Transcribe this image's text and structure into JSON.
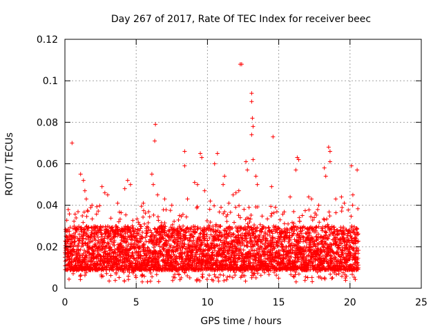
{
  "chart_data": {
    "type": "scatter",
    "title": "Day 267 of 2017, Rate Of TEC Index for receiver beec",
    "xlabel": "GPS time / hours",
    "ylabel": "ROTI / TECUs",
    "xlim": [
      0,
      25
    ],
    "ylim": [
      0,
      0.12
    ],
    "x_ticks": [
      0,
      5,
      10,
      15,
      20,
      25
    ],
    "x_tick_labels": [
      "0",
      "5",
      "10",
      "15",
      "20",
      "25"
    ],
    "y_ticks": [
      0,
      0.02,
      0.04,
      0.06,
      0.08,
      0.1,
      0.12
    ],
    "y_tick_labels": [
      "0",
      "0.02",
      "0.04",
      "0.06",
      "0.08",
      "0.1",
      "0.12"
    ],
    "grid": true,
    "marker": "+",
    "color": "#ff0000",
    "data_x_range": [
      0,
      20.6
    ],
    "typical_band": [
      0.005,
      0.03
    ],
    "series": [
      {
        "name": "ROTI",
        "points": [
          [
            0.5,
            0.07
          ],
          [
            1.1,
            0.055
          ],
          [
            1.3,
            0.052
          ],
          [
            1.4,
            0.047
          ],
          [
            1.5,
            0.043
          ],
          [
            2.6,
            0.049
          ],
          [
            2.8,
            0.046
          ],
          [
            3.7,
            0.041
          ],
          [
            4.2,
            0.048
          ],
          [
            4.4,
            0.052
          ],
          [
            4.6,
            0.05
          ],
          [
            6.1,
            0.055
          ],
          [
            6.2,
            0.05
          ],
          [
            6.3,
            0.071
          ],
          [
            6.35,
            0.079
          ],
          [
            6.5,
            0.045
          ],
          [
            7.0,
            0.043
          ],
          [
            8.4,
            0.066
          ],
          [
            8.4,
            0.059
          ],
          [
            8.6,
            0.043
          ],
          [
            9.3,
            0.05
          ],
          [
            9.5,
            0.065
          ],
          [
            9.6,
            0.063
          ],
          [
            9.8,
            0.047
          ],
          [
            10.2,
            0.042
          ],
          [
            10.5,
            0.06
          ],
          [
            10.7,
            0.065
          ],
          [
            11.1,
            0.05
          ],
          [
            11.2,
            0.054
          ],
          [
            11.5,
            0.041
          ],
          [
            12.2,
            0.047
          ],
          [
            12.3,
            0.108
          ],
          [
            12.4,
            0.108
          ],
          [
            12.7,
            0.061
          ],
          [
            12.8,
            0.057
          ],
          [
            13.1,
            0.094
          ],
          [
            13.1,
            0.09
          ],
          [
            13.15,
            0.082
          ],
          [
            13.2,
            0.078
          ],
          [
            13.1,
            0.074
          ],
          [
            13.2,
            0.062
          ],
          [
            13.4,
            0.054
          ],
          [
            13.5,
            0.05
          ],
          [
            14.5,
            0.049
          ],
          [
            14.6,
            0.073
          ],
          [
            16.3,
            0.063
          ],
          [
            16.4,
            0.062
          ],
          [
            16.2,
            0.057
          ],
          [
            17.1,
            0.044
          ],
          [
            17.3,
            0.043
          ],
          [
            18.2,
            0.058
          ],
          [
            18.3,
            0.054
          ],
          [
            18.5,
            0.068
          ],
          [
            18.6,
            0.066
          ],
          [
            18.6,
            0.061
          ],
          [
            19.4,
            0.044
          ],
          [
            19.6,
            0.041
          ],
          [
            20.1,
            0.059
          ],
          [
            20.2,
            0.045
          ],
          [
            20.5,
            0.057
          ],
          [
            7.5,
            0.04
          ],
          [
            5.5,
            0.041
          ],
          [
            3.0,
            0.045
          ],
          [
            15.8,
            0.044
          ],
          [
            11.8,
            0.045
          ],
          [
            9.1,
            0.051
          ],
          [
            12.0,
            0.046
          ],
          [
            17.8,
            0.04
          ],
          [
            19.0,
            0.043
          ],
          [
            1.9,
            0.04
          ]
        ]
      }
    ]
  }
}
